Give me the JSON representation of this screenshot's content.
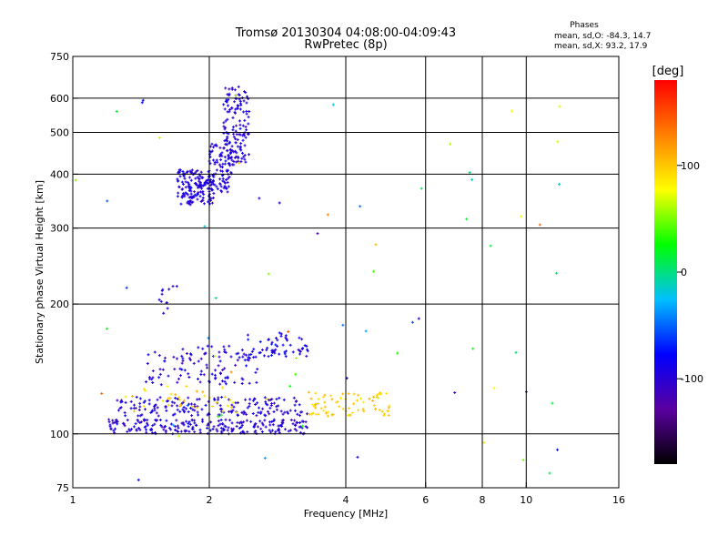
{
  "chart_data": {
    "type": "scatter",
    "title": "Tromsø 20130304 04:08:00-04:09:43",
    "subtitle": "RwPretec (8p)",
    "xlabel": "Frequency [MHz]",
    "ylabel": "Stationary phase Virtual Height [km]",
    "x_scale": "log",
    "y_scale": "log",
    "xlim": [
      1,
      16
    ],
    "ylim": [
      75,
      750
    ],
    "x_ticks": [
      1,
      2,
      4,
      6,
      8,
      10,
      16
    ],
    "y_ticks": [
      75,
      100,
      200,
      300,
      400,
      500,
      600,
      750
    ],
    "x_gridlines": [
      2,
      4,
      6,
      8,
      10
    ],
    "y_gridlines": [
      100,
      200,
      300,
      400,
      500,
      600
    ],
    "grid": true,
    "phase_box": {
      "title": "Phases",
      "line_o": "mean, sd,O: -84.3, 14.7",
      "line_x": "mean, sd,X:  93.2, 17.9"
    },
    "colorbar": {
      "label": "[deg]",
      "range": [
        -180,
        180
      ],
      "ticks": [
        100,
        0,
        -100
      ],
      "colors": [
        "#000000",
        "#5a00a0",
        "#0000ff",
        "#00bfff",
        "#00ff00",
        "#ffff00",
        "#ff8000",
        "#ff0000"
      ]
    },
    "clusters": [
      {
        "name": "",
        "x_range": [
          1.55,
          1.7
        ],
        "y_range": [
          190,
          220
        ],
        "phase_range": [
          -110,
          -85
        ],
        "count": 12
      },
      {
        "name": "",
        "x_range": [
          1.7,
          2.05
        ],
        "y_range": [
          340,
          410
        ],
        "phase_range": [
          -110,
          -80
        ],
        "count": 160
      },
      {
        "name": "",
        "x_range": [
          2.0,
          2.25
        ],
        "y_range": [
          360,
          470
        ],
        "phase_range": [
          -110,
          -80
        ],
        "count": 90
      },
      {
        "name": "",
        "x_range": [
          2.15,
          2.45
        ],
        "y_range": [
          420,
          640
        ],
        "phase_range": [
          -110,
          -80
        ],
        "count": 140
      },
      {
        "name": "",
        "x_range": [
          1.2,
          3.3
        ],
        "y_range": [
          100,
          108
        ],
        "phase_range": [
          -115,
          -80
        ],
        "count": 220
      },
      {
        "name": "",
        "x_range": [
          1.25,
          3.3
        ],
        "y_range": [
          110,
          122
        ],
        "phase_range": [
          -115,
          -80
        ],
        "count": 170
      },
      {
        "name": "",
        "x_range": [
          1.45,
          2.6
        ],
        "y_range": [
          130,
          160
        ],
        "phase_range": [
          -115,
          -80
        ],
        "count": 110
      },
      {
        "name": "",
        "x_range": [
          2.4,
          3.3
        ],
        "y_range": [
          150,
          172
        ],
        "phase_range": [
          -110,
          -70
        ],
        "count": 60
      },
      {
        "name": "",
        "x_range": [
          1.3,
          2.3
        ],
        "y_range": [
          110,
          130
        ],
        "phase_range": [
          80,
          110
        ],
        "count": 35
      },
      {
        "name": "",
        "x_range": [
          3.3,
          5.0
        ],
        "y_range": [
          110,
          125
        ],
        "phase_range": [
          85,
          110
        ],
        "count": 70
      },
      {
        "name": "",
        "x_range": [
          1.0,
          12.0
        ],
        "y_range": [
          78,
          620
        ],
        "phase_range": [
          -120,
          150
        ],
        "count": 70
      }
    ]
  }
}
